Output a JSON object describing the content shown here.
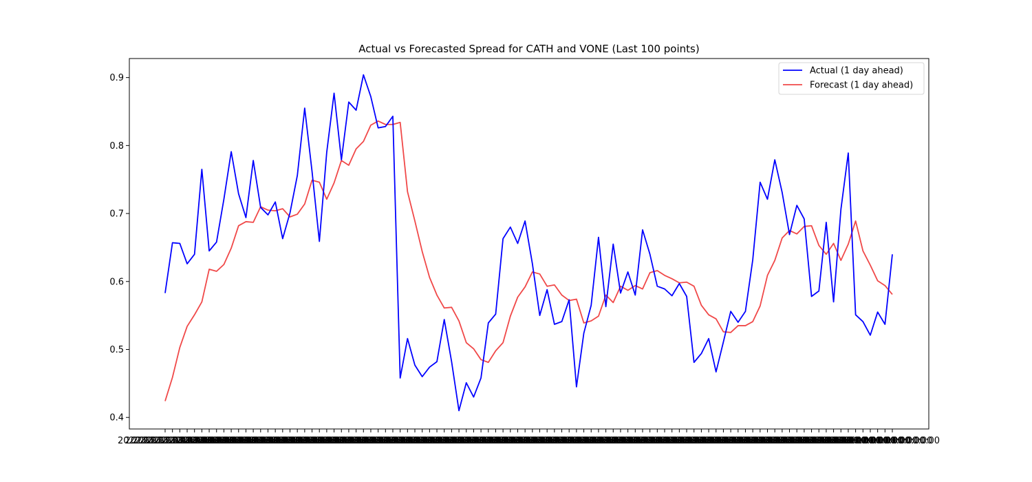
{
  "chart_data": {
    "type": "line",
    "title": "Actual vs Forecasted Spread for CATH and VONE (Last 100 points)",
    "xlabel": "",
    "ylabel": "",
    "ylim": [
      0.383,
      0.928
    ],
    "yticks": [
      0.4,
      0.5,
      0.6,
      0.7,
      0.8,
      0.9
    ],
    "ytick_labels": [
      "0.4",
      "0.5",
      "0.6",
      "0.7",
      "0.8",
      "0.9"
    ],
    "grid": false,
    "legend_position": "top-right",
    "x_tick_text": "2022-01-01 00:00:00",
    "series": [
      {
        "name": "Actual (1 day ahead)",
        "color": "#0000ff",
        "values": [
          0.583,
          0.657,
          0.656,
          0.626,
          0.64,
          0.765,
          0.645,
          0.658,
          0.721,
          0.791,
          0.729,
          0.694,
          0.778,
          0.709,
          0.698,
          0.717,
          0.663,
          0.701,
          0.756,
          0.855,
          0.762,
          0.659,
          0.79,
          0.877,
          0.779,
          0.864,
          0.852,
          0.904,
          0.872,
          0.826,
          0.828,
          0.843,
          0.458,
          0.516,
          0.477,
          0.46,
          0.474,
          0.482,
          0.544,
          0.482,
          0.41,
          0.451,
          0.43,
          0.458,
          0.539,
          0.552,
          0.663,
          0.68,
          0.656,
          0.689,
          0.626,
          0.55,
          0.588,
          0.537,
          0.541,
          0.573,
          0.445,
          0.524,
          0.565,
          0.665,
          0.563,
          0.655,
          0.583,
          0.614,
          0.58,
          0.676,
          0.64,
          0.593,
          0.589,
          0.579,
          0.597,
          0.578,
          0.481,
          0.494,
          0.516,
          0.467,
          0.511,
          0.556,
          0.54,
          0.556,
          0.632,
          0.746,
          0.721,
          0.779,
          0.731,
          0.669,
          0.712,
          0.692,
          0.578,
          0.586,
          0.687,
          0.57,
          0.706,
          0.789,
          0.551,
          0.541,
          0.521,
          0.555,
          0.537,
          0.64
        ]
      },
      {
        "name": "Forecast (1 day ahead)",
        "color": "#f04848",
        "values": [
          0.424,
          0.459,
          0.503,
          0.534,
          0.551,
          0.57,
          0.618,
          0.615,
          0.625,
          0.649,
          0.682,
          0.688,
          0.687,
          0.71,
          0.705,
          0.704,
          0.707,
          0.695,
          0.699,
          0.714,
          0.749,
          0.746,
          0.721,
          0.745,
          0.778,
          0.771,
          0.795,
          0.806,
          0.83,
          0.836,
          0.831,
          0.831,
          0.834,
          0.732,
          0.689,
          0.644,
          0.606,
          0.58,
          0.561,
          0.562,
          0.542,
          0.51,
          0.501,
          0.485,
          0.481,
          0.498,
          0.51,
          0.549,
          0.577,
          0.592,
          0.614,
          0.611,
          0.593,
          0.595,
          0.58,
          0.572,
          0.574,
          0.539,
          0.542,
          0.549,
          0.58,
          0.569,
          0.593,
          0.587,
          0.594,
          0.589,
          0.613,
          0.616,
          0.609,
          0.604,
          0.598,
          0.599,
          0.593,
          0.565,
          0.551,
          0.545,
          0.526,
          0.525,
          0.535,
          0.535,
          0.541,
          0.564,
          0.609,
          0.631,
          0.664,
          0.675,
          0.67,
          0.681,
          0.682,
          0.653,
          0.64,
          0.656,
          0.631,
          0.655,
          0.689,
          0.645,
          0.624,
          0.601,
          0.594,
          0.581
        ]
      }
    ]
  }
}
